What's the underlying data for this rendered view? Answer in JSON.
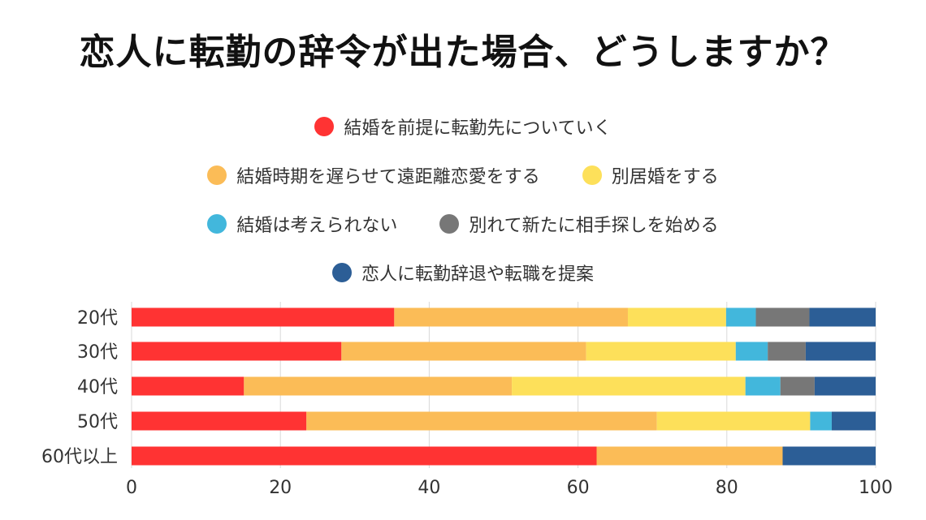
{
  "title": "恋人に転勤の辞令が出た場合、どうしますか？",
  "legend_rows": [
    [
      0
    ],
    [
      1,
      2
    ],
    [
      3,
      4
    ],
    [
      5
    ]
  ],
  "chart_data": {
    "type": "bar",
    "orientation": "horizontal",
    "stacked": true,
    "title": "恋人に転勤の辞令が出た場合、どうしますか？",
    "categories": [
      "20代",
      "30代",
      "40代",
      "50代",
      "60代以上"
    ],
    "xlim": [
      0,
      100
    ],
    "xticks": [
      "0",
      "20",
      "40",
      "60",
      "80",
      "100"
    ],
    "grid": true,
    "legend_position": "top",
    "series": [
      {
        "name": "結婚を前提に転勤先についていく",
        "color": "#ff3333",
        "values": [
          35.3,
          28.2,
          15.1,
          23.5,
          62.5
        ]
      },
      {
        "name": "結婚時期を遅らせて遠距離恋愛をする",
        "color": "#fbbc57",
        "values": [
          31.4,
          32.9,
          36.0,
          47.1,
          25.0
        ]
      },
      {
        "name": "別居婚をする",
        "color": "#fde05a",
        "values": [
          13.2,
          20.1,
          31.4,
          20.6,
          0
        ]
      },
      {
        "name": "結婚は考えられない",
        "color": "#42b7dc",
        "values": [
          4.0,
          4.3,
          4.7,
          2.9,
          0
        ]
      },
      {
        "name": "別れて新たに相手探しを始める",
        "color": "#777777",
        "values": [
          7.2,
          5.1,
          4.6,
          0,
          0
        ]
      },
      {
        "name": "恋人に転勤辞退や転職を提案",
        "color": "#2c5e96",
        "values": [
          8.9,
          9.4,
          8.2,
          5.9,
          12.5
        ]
      }
    ]
  }
}
